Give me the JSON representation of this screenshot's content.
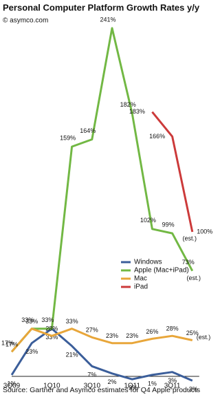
{
  "chart_data": {
    "type": "line",
    "title": "Personal Computer Platform Growth Rates y/y",
    "subtitle": "© asymco.com",
    "source": "Source: Gartner and Asymco estimates for Q4 Apple products",
    "categories": [
      "3Q09",
      null,
      "1Q10",
      null,
      "3Q10",
      null,
      "1Q11",
      null,
      "3Q11",
      null
    ],
    "ylim": [
      -5,
      245
    ],
    "legend": "center-right",
    "series": [
      {
        "name": "Windows",
        "color": "#3b5e9a",
        "values": [
          1,
          23,
          33,
          21,
          7,
          2,
          -2,
          1,
          3,
          -3
        ],
        "value_labels": [
          "1%",
          "23%",
          "33%",
          "21%",
          "7%",
          "2%",
          "-2%",
          "1%",
          "3%",
          "-3%"
        ]
      },
      {
        "name": "Apple (Mac+iPad)",
        "color": "#72b844",
        "values": [
          17,
          33,
          33,
          159,
          164,
          241,
          182,
          102,
          99,
          73
        ],
        "value_labels": [
          "17%",
          "33%",
          "33%",
          "159%",
          "164%",
          "241%",
          "182%",
          "102%",
          "99%",
          "73%"
        ],
        "note": "(est.)"
      },
      {
        "name": "Mac",
        "color": "#e8a63a",
        "values": [
          17,
          33,
          28,
          33,
          27,
          23,
          23,
          26,
          28,
          25
        ],
        "value_labels": [
          "17%",
          "33%",
          "28%",
          "33%",
          "27%",
          "23%",
          "23%",
          "26%",
          "28%",
          "25%"
        ],
        "note": "(est.)"
      },
      {
        "name": "iPad",
        "color": "#cc3a3a",
        "values": [
          null,
          null,
          null,
          null,
          null,
          null,
          null,
          183,
          166,
          100
        ],
        "value_labels": [
          null,
          null,
          null,
          null,
          null,
          null,
          null,
          "183%",
          "166%",
          "100%"
        ],
        "note": "(est.)"
      }
    ]
  }
}
